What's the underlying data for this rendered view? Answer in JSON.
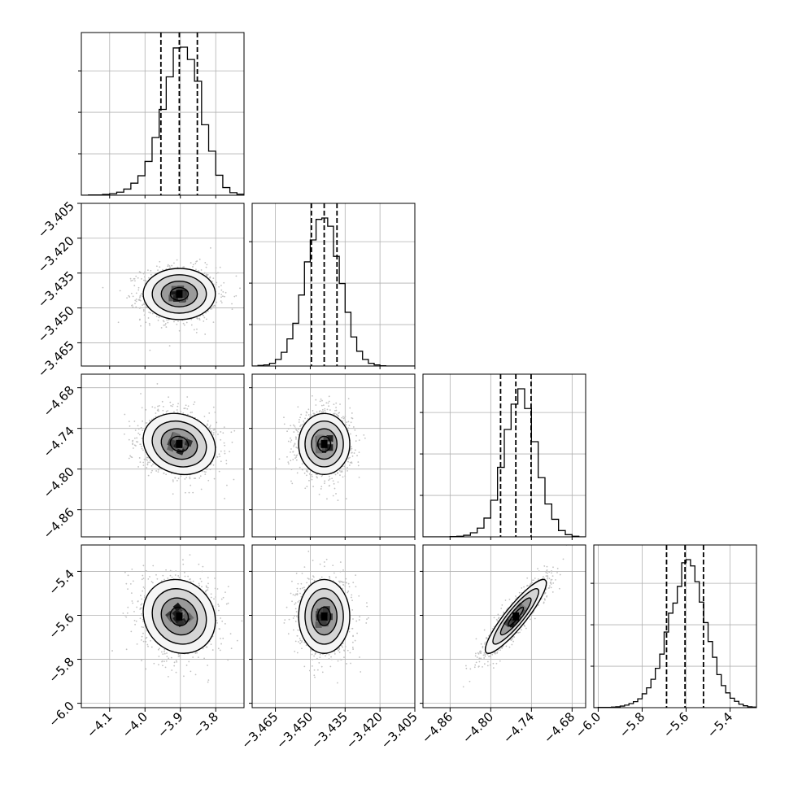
{
  "chart_data": {
    "type": "corner",
    "grid": true,
    "style": {
      "hist_color": "#000000",
      "contour_color": "#000000",
      "grid_color": "#b0b0b0",
      "point_color": "#c2c2c2",
      "quantile_line_style": "dashed"
    },
    "parameters": [
      {
        "range": [
          -4.18,
          -3.72
        ],
        "ticks": [
          -4.1,
          -4.0,
          -3.9,
          -3.8
        ],
        "tick_labels": [
          "−4.1",
          "−4.0",
          "−3.9",
          "−3.8"
        ],
        "quantiles": [
          -3.955,
          -3.903,
          -3.852
        ],
        "center": -3.903,
        "sigma": 0.051,
        "hist": {
          "bin_edges": [
            -4.18,
            -4.16,
            -4.14,
            -4.12,
            -4.1,
            -4.08,
            -4.06,
            -4.04,
            -4.02,
            -4.0,
            -3.98,
            -3.96,
            -3.94,
            -3.92,
            -3.9,
            -3.88,
            -3.86,
            -3.84,
            -3.82,
            -3.8,
            -3.78,
            -3.76,
            -3.74,
            -3.72
          ],
          "counts": [
            0,
            1,
            1,
            3,
            6,
            12,
            24,
            47,
            76,
            132,
            225,
            335,
            462,
            575,
            578,
            530,
            445,
            275,
            172,
            78,
            30,
            10,
            4
          ]
        }
      },
      {
        "range": [
          -3.475,
          -3.405
        ],
        "ticks": [
          -3.465,
          -3.45,
          -3.435,
          -3.42,
          -3.405
        ],
        "tick_labels": [
          "−3.465",
          "−3.450",
          "−3.435",
          "−3.420",
          "−3.405"
        ],
        "quantiles": [
          -3.4495,
          -3.444,
          -3.4385
        ],
        "center": -3.444,
        "sigma": 0.0055,
        "hist": {
          "bin_edges": [
            -3.475,
            -3.4725,
            -3.47,
            -3.4675,
            -3.465,
            -3.4625,
            -3.46,
            -3.4575,
            -3.455,
            -3.4525,
            -3.45,
            -3.4475,
            -3.445,
            -3.4425,
            -3.44,
            -3.4375,
            -3.435,
            -3.4325,
            -3.43,
            -3.4275,
            -3.425,
            -3.4225,
            -3.42,
            -3.4175,
            -3.415,
            -3.4125,
            -3.41,
            -3.4075,
            -3.405
          ],
          "counts": [
            0,
            2,
            4,
            10,
            24,
            50,
            99,
            156,
            259,
            380,
            460,
            535,
            540,
            510,
            400,
            301,
            196,
            106,
            54,
            24,
            10,
            4,
            1,
            0,
            0,
            0,
            0,
            0
          ]
        }
      },
      {
        "range": [
          -4.9,
          -4.66
        ],
        "ticks": [
          -4.86,
          -4.8,
          -4.74,
          -4.68
        ],
        "tick_labels": [
          "−4.86",
          "−4.80",
          "−4.74",
          "−4.68"
        ],
        "quantiles": [
          -4.7855,
          -4.763,
          -4.7405
        ],
        "center": -4.763,
        "sigma": 0.0225,
        "hist": {
          "bin_edges": [
            -4.9,
            -4.89,
            -4.88,
            -4.87,
            -4.86,
            -4.85,
            -4.84,
            -4.83,
            -4.82,
            -4.81,
            -4.8,
            -4.79,
            -4.78,
            -4.77,
            -4.76,
            -4.75,
            -4.74,
            -4.73,
            -4.72,
            -4.71,
            -4.7,
            -4.69,
            -4.68,
            -4.67,
            -4.66
          ],
          "counts": [
            0,
            0,
            0,
            0,
            1,
            2,
            5,
            13,
            28,
            60,
            117,
            222,
            343,
            424,
            473,
            410,
            304,
            189,
            105,
            56,
            20,
            7,
            2,
            0
          ]
        }
      },
      {
        "range": [
          -6.02,
          -5.28
        ],
        "ticks": [
          -6.0,
          -5.8,
          -5.6,
          -5.4
        ],
        "tick_labels": [
          "−6.0",
          "−5.8",
          "−5.6",
          "−5.4"
        ],
        "quantiles": [
          -5.689,
          -5.605,
          -5.521
        ],
        "center": -5.605,
        "sigma": 0.084,
        "hist": {
          "bin_edges": [
            -6.02,
            -6.0,
            -5.98,
            -5.96,
            -5.94,
            -5.92,
            -5.9,
            -5.88,
            -5.86,
            -5.84,
            -5.82,
            -5.8,
            -5.78,
            -5.76,
            -5.74,
            -5.72,
            -5.7,
            -5.68,
            -5.66,
            -5.64,
            -5.62,
            -5.6,
            -5.58,
            -5.56,
            -5.54,
            -5.52,
            -5.5,
            -5.48,
            -5.46,
            -5.44,
            -5.42,
            -5.4,
            -5.38,
            -5.36,
            -5.34,
            -5.32,
            -5.3,
            -5.28
          ],
          "counts": [
            0,
            1,
            1,
            1,
            2,
            3,
            5,
            8,
            13,
            19,
            28,
            44,
            63,
            90,
            125,
            170,
            240,
            300,
            332,
            385,
            460,
            470,
            450,
            400,
            335,
            270,
            210,
            160,
            105,
            70,
            47,
            30,
            20,
            11,
            6,
            3,
            2
          ]
        }
      }
    ],
    "correlations": [
      {
        "row": 1,
        "col": 0,
        "rho": 0.0
      },
      {
        "row": 2,
        "col": 0,
        "rho": -0.15
      },
      {
        "row": 2,
        "col": 1,
        "rho": 0.0
      },
      {
        "row": 3,
        "col": 0,
        "rho": -0.12
      },
      {
        "row": 3,
        "col": 1,
        "rho": 0.0
      },
      {
        "row": 3,
        "col": 2,
        "rho": 0.9
      }
    ],
    "contour_levels_sigma": [
      0.5,
      1.0,
      1.5,
      2.0
    ]
  }
}
